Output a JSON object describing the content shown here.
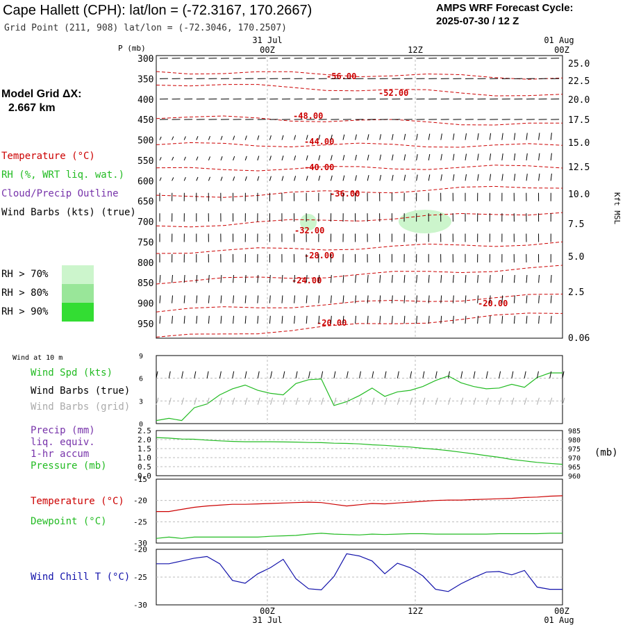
{
  "header": {
    "title": "Cape Hallett (CPH):  lat/lon = (-72.3167, 170.2667)",
    "grid_point": "Grid Point (211, 908) lat/lon = (-72.3046, 170.2507)",
    "cycle_line1": "AMPS WRF Forecast Cycle:",
    "cycle_line2": "2025-07-30 / 12  Z"
  },
  "model_grid": {
    "label": "Model Grid ΔX:",
    "value": "2.667 km"
  },
  "time_axis": {
    "top_dates": [
      "31 Jul",
      "01 Aug"
    ],
    "hours": [
      "00Z",
      "12Z",
      "00Z"
    ],
    "bottom_hours": [
      "00Z",
      "12Z",
      "00Z"
    ],
    "bottom_dates": [
      "31 Jul",
      "01 Aug"
    ]
  },
  "legend": {
    "temperature": "Temperature (°C)",
    "rh": "RH (%, WRT liq. wat.)",
    "cloud": "Cloud/Precip Outline",
    "wind": "Wind Barbs (kts) (true)",
    "rh_levels": [
      "RH > 70%",
      "RH > 80%",
      "RH > 90%"
    ],
    "rh_colors": [
      "#ccf5cc",
      "#99e699",
      "#33dd33"
    ],
    "wind10m": "Wind at 10 m",
    "wind_spd": "Wind Spd (kts)",
    "wind_barbs_true": "Wind Barbs (true)",
    "wind_barbs_grid": "Wind Barbs (grid)",
    "precip1": "Precip (mm)",
    "precip2": "liq. equiv.",
    "precip3": "1-hr accum",
    "pressure": "Pressure (mb)",
    "pressure_unit": "(mb)",
    "temp2": "Temperature (°C)",
    "dewpoint": "Dewpoint (°C)",
    "windchill": "Wind Chill T (°C)"
  },
  "colors": {
    "temperature": "#cc0000",
    "rh_green": "#22bb22",
    "cloud": "#7733aa",
    "windchill": "#1111aa",
    "grid_barbs": "#aaaaaa"
  },
  "chart_data": [
    {
      "type": "line",
      "name": "cross-section",
      "ylabel": "P (mb)",
      "ylabel_right": "Kft MSL",
      "p_ticks": [
        "300",
        "350",
        "400",
        "450",
        "500",
        "550",
        "600",
        "650",
        "700",
        "750",
        "800",
        "850",
        "900",
        "950"
      ],
      "kft_ticks": [
        "25.0",
        "22.5",
        "20.0",
        "17.5",
        "15.0",
        "12.5",
        "10.0",
        "7.5",
        "5.0",
        "2.5",
        "0.06"
      ],
      "temperature_labels": [
        "-56.00",
        "-52.00",
        "-48.00",
        "-44.00",
        "-40.00",
        "-36.00",
        "-32.00",
        "-28.00",
        "-24.00",
        "-20.00",
        "-20.00"
      ]
    },
    {
      "type": "line",
      "name": "wind speed 10 m",
      "yticks": [
        "0",
        "3",
        "6",
        "9"
      ],
      "ylim": [
        0,
        9
      ],
      "values": [
        0.4,
        0.7,
        0.4,
        2.1,
        2.6,
        3.8,
        4.6,
        5.1,
        4.4,
        4.0,
        3.8,
        5.3,
        5.8,
        5.9,
        2.4,
        2.9,
        3.7,
        4.7,
        3.6,
        4.2,
        4.4,
        4.9,
        5.7,
        6.3,
        5.4,
        4.9,
        4.6,
        4.7,
        5.2,
        4.8,
        6.1,
        6.7,
        6.7
      ]
    },
    {
      "type": "line",
      "name": "precip and pressure",
      "yticks_left": [
        "0.0",
        "0.5",
        "1.0",
        "1.5",
        "2.0",
        "2.5"
      ],
      "yticks_right": [
        "960",
        "965",
        "970",
        "975",
        "980",
        "985"
      ],
      "ylim_right": [
        960,
        985
      ],
      "pressure": [
        981.1,
        980.8,
        980.3,
        980.2,
        979.7,
        979.3,
        979.0,
        978.8,
        978.8,
        978.8,
        978.7,
        978.6,
        978.4,
        978.3,
        978.0,
        977.9,
        977.6,
        977.1,
        976.8,
        976.3,
        975.9,
        975.2,
        974.6,
        973.9,
        973.0,
        972.1,
        971.1,
        970.2,
        969.0,
        968.2,
        967.4,
        966.8,
        966.3
      ],
      "precip": []
    },
    {
      "type": "line",
      "name": "temperature and dewpoint",
      "yticks": [
        "-15",
        "-20",
        "-25",
        "-30"
      ],
      "ylim": [
        -30,
        -15
      ],
      "temperature": [
        -22.6,
        -22.6,
        -22.1,
        -21.6,
        -21.3,
        -21.1,
        -20.9,
        -20.9,
        -20.8,
        -20.7,
        -20.6,
        -20.5,
        -20.4,
        -20.5,
        -20.9,
        -21.3,
        -21.0,
        -20.7,
        -20.8,
        -20.6,
        -20.4,
        -20.2,
        -20.0,
        -19.9,
        -19.9,
        -19.8,
        -19.7,
        -19.6,
        -19.5,
        -19.3,
        -19.2,
        -19.0,
        -18.9
      ],
      "dewpoint": [
        -28.9,
        -28.6,
        -28.9,
        -28.6,
        -28.6,
        -28.6,
        -28.6,
        -28.6,
        -28.6,
        -28.4,
        -28.3,
        -28.2,
        -27.9,
        -27.7,
        -27.9,
        -28.0,
        -28.1,
        -27.9,
        -28.0,
        -27.9,
        -27.8,
        -27.8,
        -27.9,
        -27.9,
        -27.9,
        -27.9,
        -27.9,
        -27.8,
        -27.8,
        -27.8,
        -27.8,
        -27.7,
        -27.7
      ]
    },
    {
      "type": "line",
      "name": "wind chill",
      "yticks": [
        "-20",
        "-25",
        "-30"
      ],
      "ylim": [
        -30,
        -20
      ],
      "values": [
        -22.6,
        -22.6,
        -22.1,
        -21.6,
        -21.3,
        -22.6,
        -25.6,
        -26.1,
        -24.4,
        -23.3,
        -21.8,
        -25.3,
        -27.1,
        -27.3,
        -24.9,
        -20.8,
        -21.2,
        -22.1,
        -24.4,
        -22.5,
        -23.3,
        -24.8,
        -27.2,
        -27.6,
        -26.2,
        -25.1,
        -24.1,
        -24.0,
        -24.6,
        -23.8,
        -26.8,
        -27.2,
        -27.2
      ]
    }
  ]
}
